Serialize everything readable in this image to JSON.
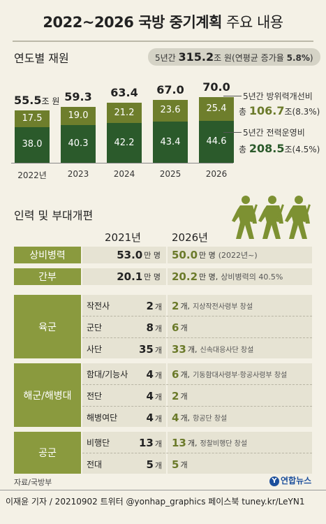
{
  "title_main": "2022~2026 국방 중기계획",
  "title_sub": " 주요 내용",
  "budget": {
    "section_title": "연도별 재원",
    "summary_prefix": "5년간 ",
    "summary_value": "315.2",
    "summary_unit": "조 원(연평균 증가율 ",
    "summary_rate": "5.8%",
    "summary_suffix": ")",
    "first_total_unit": "조 원",
    "legend": {
      "upper_label": "5년간 방위력개선비",
      "upper_total_prefix": "총 ",
      "upper_total_value": "106.7",
      "upper_total_suffix": "조(8.3%)",
      "lower_label": "5년간 전력운영비",
      "lower_total_prefix": "총 ",
      "lower_total_value": "208.5",
      "lower_total_suffix": "조(4.5%)"
    }
  },
  "chart_data": {
    "type": "bar",
    "stacked": true,
    "categories": [
      "2022년",
      "2023",
      "2024",
      "2025",
      "2026"
    ],
    "totals": [
      "55.5",
      "59.3",
      "63.4",
      "67.0",
      "70.0"
    ],
    "series": [
      {
        "name": "5년간 전력운영비",
        "values": [
          38.0,
          40.3,
          42.2,
          43.4,
          44.6
        ],
        "labels": [
          "38.0",
          "40.3",
          "42.2",
          "43.4",
          "44.6"
        ],
        "color": "#2b5a2b"
      },
      {
        "name": "5년간 방위력개선비",
        "values": [
          17.5,
          19.0,
          21.2,
          23.6,
          25.4
        ],
        "labels": [
          "17.5",
          "19.0",
          "21.2",
          "23.6",
          "25.4"
        ],
        "color": "#6e7e2c"
      }
    ],
    "ylim": [
      0,
      70
    ]
  },
  "personnel": {
    "section_title": "인력 및 부대개편",
    "year_a": "2021년",
    "year_b": "2026년",
    "rows": [
      {
        "cat": "상비병력",
        "a_num": "53.0",
        "a_unit": "만 명",
        "b_num": "50.0",
        "b_unit": "만 명",
        "note": "(2022년~)"
      },
      {
        "cat": "간부",
        "a_num": "20.1",
        "a_unit": "만 명",
        "b_num": "20.2",
        "b_unit": "만 명,",
        "note": "상비병력의 40.5%"
      }
    ]
  },
  "units": {
    "groups": [
      {
        "cat": "육군",
        "items": [
          {
            "name": "작전사",
            "a_num": "2",
            "a_unit": "개",
            "b_num": "2",
            "b_unit": "개,",
            "note": "지상작전사령부 창설"
          },
          {
            "name": "군단",
            "a_num": "8",
            "a_unit": "개",
            "b_num": "6",
            "b_unit": "개",
            "note": ""
          },
          {
            "name": "사단",
            "a_num": "35",
            "a_unit": "개",
            "b_num": "33",
            "b_unit": "개,",
            "note": "신속대응사단 창설"
          }
        ]
      },
      {
        "cat": "해군/해병대",
        "items": [
          {
            "name": "함대/기능사",
            "a_num": "4",
            "a_unit": "개",
            "b_num": "6",
            "b_unit": "개,",
            "note": "기동함대사령부·항공사령부 창설"
          },
          {
            "name": "전단",
            "a_num": "4",
            "a_unit": "개",
            "b_num": "2",
            "b_unit": "개",
            "note": ""
          },
          {
            "name": "해병여단",
            "a_num": "4",
            "a_unit": "개",
            "b_num": "4",
            "b_unit": "개,",
            "note": "항공단 창설"
          }
        ]
      },
      {
        "cat": "공군",
        "items": [
          {
            "name": "비행단",
            "a_num": "13",
            "a_unit": "개",
            "b_num": "13",
            "b_unit": "개,",
            "note": "정찰비행단 창설"
          },
          {
            "name": "전대",
            "a_num": "5",
            "a_unit": "개",
            "b_num": "5",
            "b_unit": "개",
            "note": ""
          }
        ]
      }
    ]
  },
  "source": "자료/국방부",
  "logo_text": "연합뉴스",
  "footer": "이재윤 기자 / 20210902 트위터 @yonhap_graphics 페이스북 tuney.kr/LeYN1"
}
